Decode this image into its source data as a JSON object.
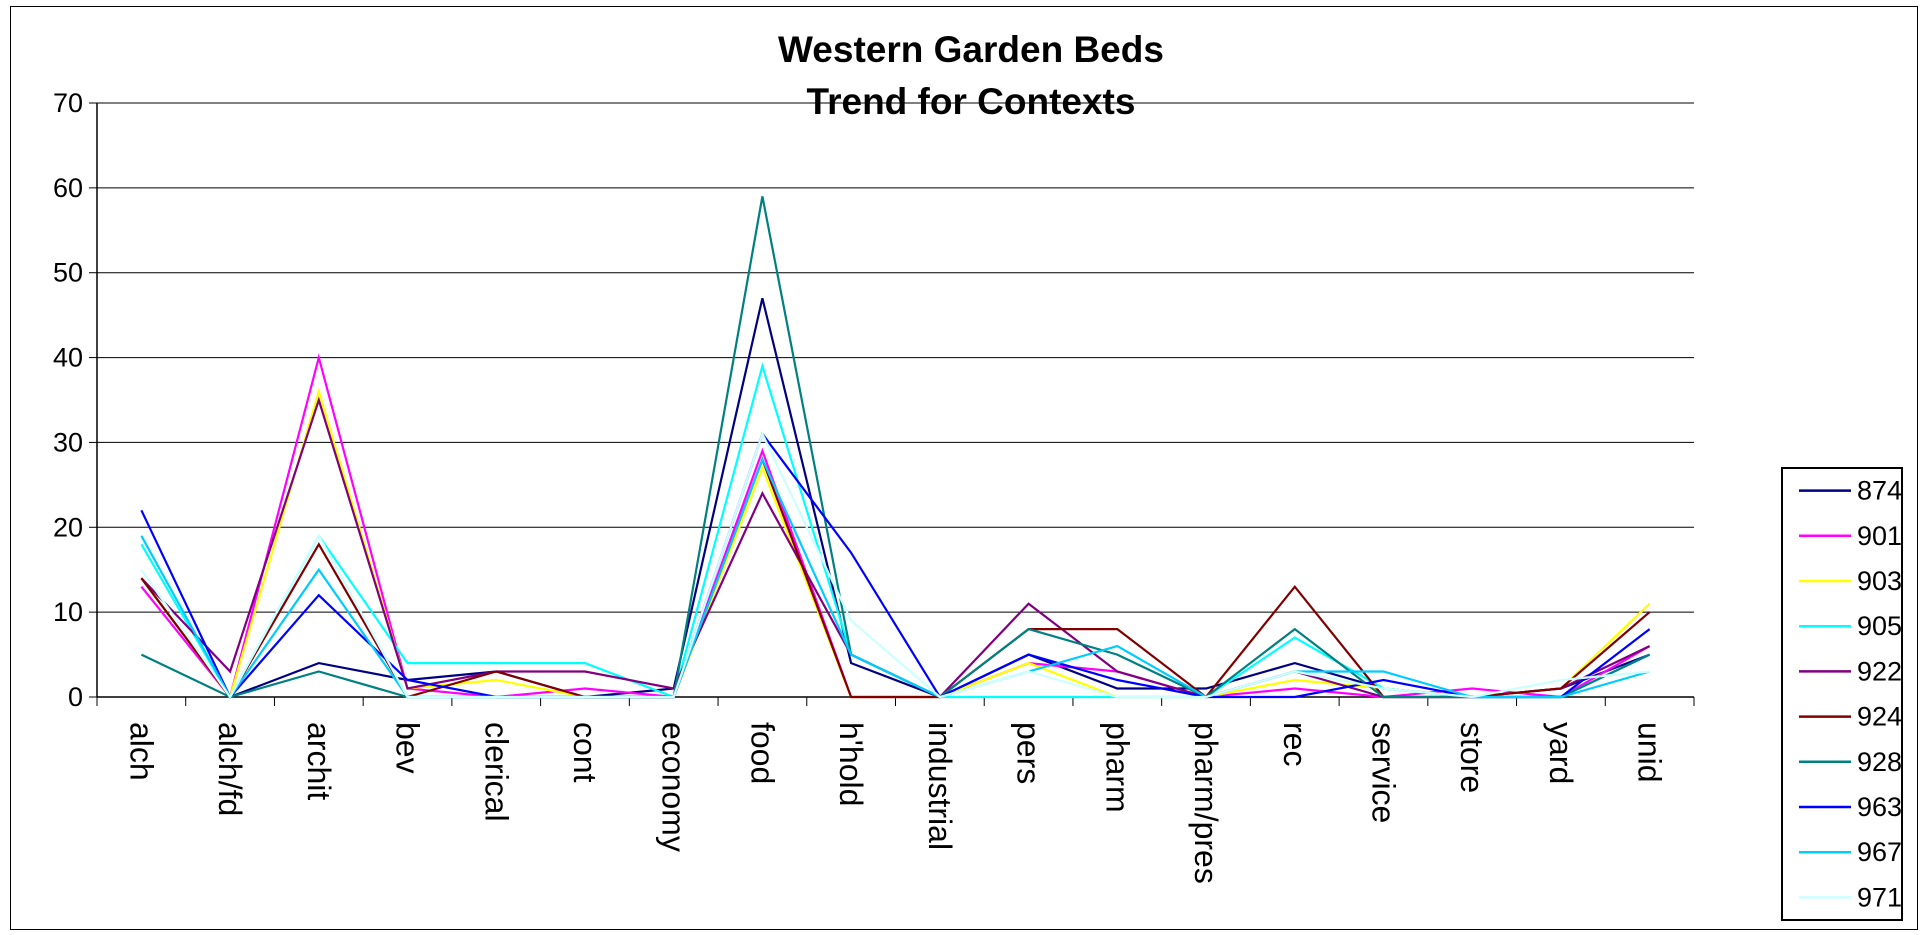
{
  "chart_data": {
    "type": "line",
    "title": [
      "Western Garden Beds",
      "Trend for Contexts"
    ],
    "xlabel": "",
    "ylabel": "",
    "ylim": [
      0,
      70
    ],
    "yticks": [
      0,
      10,
      20,
      30,
      40,
      50,
      60,
      70
    ],
    "grid": "horizontal",
    "legend_position": "right",
    "categories": [
      "alch",
      "alch/fd",
      "archit",
      "bev",
      "clerical",
      "cont",
      "economy",
      "food",
      "h'hold",
      "industrial",
      "pers",
      "pharm",
      "pharm/pres",
      "rec",
      "service",
      "store",
      "yard",
      "unid"
    ],
    "series": [
      {
        "name": "874",
        "color": "#000080",
        "values": [
          14,
          0,
          4,
          2,
          3,
          0,
          1,
          47,
          4,
          0,
          5,
          1,
          1,
          4,
          1,
          0,
          1,
          5
        ]
      },
      {
        "name": "901",
        "color": "#FF00FF",
        "values": [
          13,
          0,
          40,
          1,
          0,
          1,
          0,
          29,
          0,
          0,
          4,
          3,
          0,
          1,
          0,
          1,
          0,
          6
        ]
      },
      {
        "name": "903",
        "color": "#FFFF00",
        "values": [
          14,
          0,
          36,
          1,
          2,
          0,
          0,
          27,
          0,
          0,
          4,
          0,
          0,
          2,
          1,
          0,
          1,
          11
        ]
      },
      {
        "name": "905",
        "color": "#00FFFF",
        "values": [
          18,
          0,
          19,
          4,
          4,
          4,
          0,
          39,
          5,
          0,
          0,
          0,
          0,
          7,
          1,
          0,
          0,
          5
        ]
      },
      {
        "name": "922",
        "color": "#800080",
        "values": [
          14,
          3,
          35,
          1,
          3,
          3,
          1,
          24,
          5,
          0,
          11,
          3,
          0,
          3,
          0,
          0,
          1,
          6
        ]
      },
      {
        "name": "924",
        "color": "#800000",
        "values": [
          14,
          0,
          18,
          0,
          3,
          0,
          0,
          28,
          0,
          0,
          8,
          8,
          0,
          13,
          0,
          0,
          1,
          10
        ]
      },
      {
        "name": "928",
        "color": "#008080",
        "values": [
          5,
          0,
          3,
          0,
          0,
          0,
          0,
          59,
          5,
          0,
          8,
          5,
          0,
          8,
          0,
          0,
          0,
          5
        ]
      },
      {
        "name": "963",
        "color": "#0000FF",
        "values": [
          22,
          0,
          12,
          2,
          0,
          0,
          0,
          31,
          17,
          0,
          5,
          2,
          0,
          0,
          2,
          0,
          0,
          8
        ]
      },
      {
        "name": "967",
        "color": "#00CCFF",
        "values": [
          19,
          0,
          15,
          0,
          0,
          0,
          0,
          28,
          5,
          0,
          3,
          6,
          0,
          3,
          3,
          0,
          0,
          3
        ]
      },
      {
        "name": "971",
        "color": "#CCFFFF",
        "values": [
          15,
          0,
          19,
          0,
          0,
          0,
          0,
          31,
          9,
          0,
          3,
          0,
          0,
          3,
          1,
          0,
          2,
          3
        ]
      }
    ]
  }
}
